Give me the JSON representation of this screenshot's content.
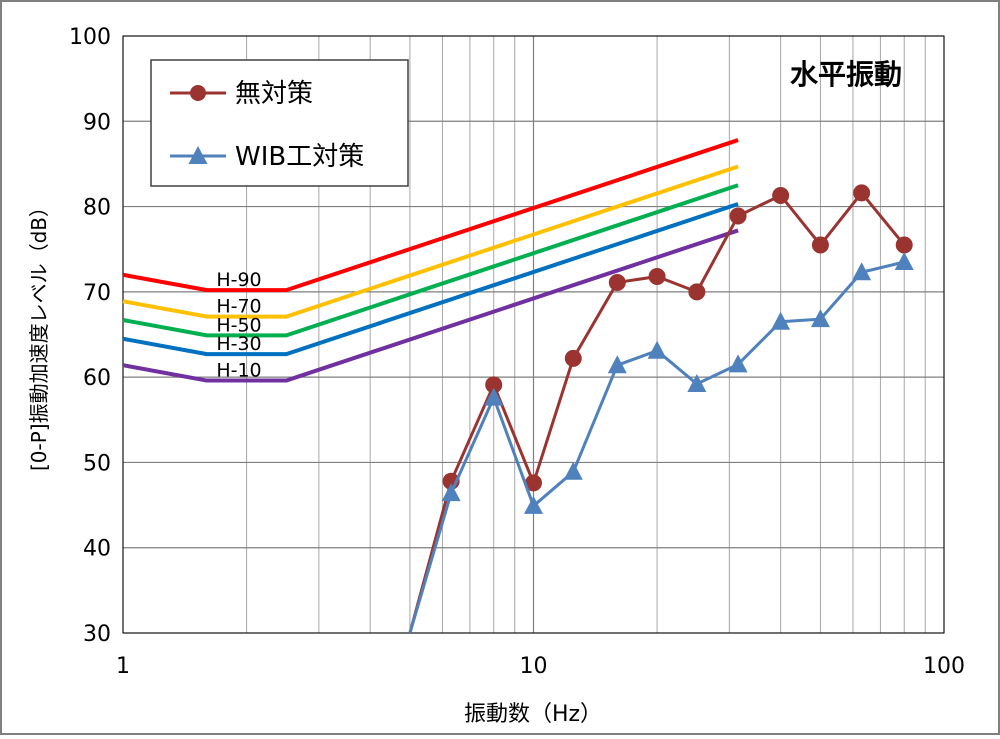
{
  "chart_data": {
    "type": "line",
    "title": "水平振動",
    "xlabel": "振動数（Hz）",
    "ylabel": "[0-P]振動加速度レベル（dB）",
    "x_scale": "log",
    "xlim": [
      1,
      100
    ],
    "ylim": [
      30,
      100
    ],
    "x_ticks": [
      1,
      10,
      100
    ],
    "x_tick_labels": [
      "1",
      "10",
      "100"
    ],
    "y_ticks": [
      30,
      40,
      50,
      60,
      70,
      80,
      90,
      100
    ],
    "y_tick_labels": [
      "30",
      "40",
      "50",
      "60",
      "70",
      "80",
      "90",
      "100"
    ],
    "grid": true,
    "legend_position": "top-left",
    "series": [
      {
        "name": "無対策",
        "color": "#9b3430",
        "marker": "circle",
        "x": [
          5,
          6.3,
          8,
          10,
          12.5,
          16,
          20,
          25,
          31.5,
          40,
          50,
          63,
          80
        ],
        "y": [
          30,
          47.8,
          59.1,
          47.6,
          62.2,
          71.1,
          71.8,
          70.0,
          78.9,
          81.3,
          75.5,
          81.6,
          75.5
        ],
        "marker_from": 1
      },
      {
        "name": "WIB工対策",
        "color": "#4f81bd",
        "marker": "triangle",
        "x": [
          5,
          6.3,
          8,
          10,
          12.5,
          16,
          20,
          25,
          31.5,
          40,
          50,
          63,
          80
        ],
        "y": [
          30,
          46.4,
          57.6,
          44.9,
          48.9,
          61.4,
          63.1,
          59.2,
          61.5,
          66.5,
          66.8,
          72.3,
          73.5
        ],
        "marker_from": 1
      }
    ],
    "reference_curves": [
      {
        "label": "H-90",
        "color": "#ff0000",
        "x": [
          1,
          1.6,
          2.5,
          31.5
        ],
        "y": [
          72.0,
          70.2,
          70.2,
          87.8
        ]
      },
      {
        "label": "H-70",
        "color": "#ffc000",
        "x": [
          1,
          1.6,
          2.5,
          31.5
        ],
        "y": [
          68.9,
          67.1,
          67.1,
          84.7
        ]
      },
      {
        "label": "H-50",
        "color": "#00b050",
        "x": [
          1,
          1.6,
          2.5,
          31.5
        ],
        "y": [
          66.7,
          64.9,
          64.9,
          82.5
        ]
      },
      {
        "label": "H-30",
        "color": "#0070c0",
        "x": [
          1,
          1.6,
          2.5,
          31.5
        ],
        "y": [
          64.5,
          62.7,
          62.7,
          80.3
        ]
      },
      {
        "label": "H-10",
        "color": "#7030a0",
        "x": [
          1,
          1.6,
          2.5,
          31.5
        ],
        "y": [
          61.4,
          59.6,
          59.6,
          77.2
        ]
      }
    ]
  }
}
